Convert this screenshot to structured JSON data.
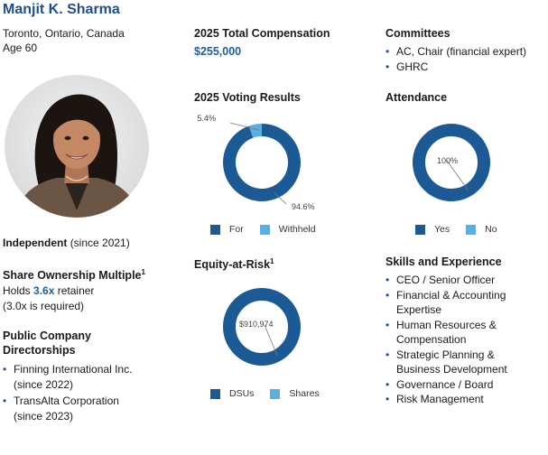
{
  "profile": {
    "name": "Manjit K. Sharma",
    "location": "Toronto, Ontario, Canada",
    "age": "Age 60",
    "independent_label": "Independent",
    "independent_since": "(since 2021)",
    "share_ownership_title": "Share Ownership Multiple",
    "share_ownership_sup": "1",
    "holds_prefix": "Holds",
    "holds_value": "3.6x",
    "holds_suffix": "retainer",
    "required": "(3.0x is required)",
    "directorships_title_1": "Public Company",
    "directorships_title_2": "Directorships",
    "directorships": [
      {
        "line1": "Finning International Inc.",
        "line2": "(since 2022)"
      },
      {
        "line1": "TransAlta Corporation",
        "line2": "(since 2023)"
      }
    ]
  },
  "compensation": {
    "title": "2025 Total Compensation",
    "value": "$255,000"
  },
  "colors": {
    "primary": "#1b5a94",
    "secondary": "#5aaee0",
    "name": "#1f4e8c"
  },
  "chart_data": [
    {
      "type": "pie",
      "title": "2025 Voting Results",
      "categories": [
        "For",
        "Withheld"
      ],
      "values": [
        94.6,
        5.4
      ],
      "labels": [
        "94.6%",
        "5.4%"
      ],
      "legend": "bottom"
    },
    {
      "type": "pie",
      "title": "Attendance",
      "categories": [
        "Yes",
        "No"
      ],
      "values": [
        100,
        0
      ],
      "labels": [
        "100%"
      ],
      "legend": "bottom"
    },
    {
      "type": "pie",
      "title": "Equity-at-Risk",
      "title_sup": "1",
      "categories": [
        "DSUs",
        "Shares"
      ],
      "values": [
        910974,
        0
      ],
      "labels": [
        "$910,974"
      ],
      "legend": "bottom"
    }
  ],
  "committees": {
    "title": "Committees",
    "items": [
      "AC, Chair (financial expert)",
      "GHRC"
    ]
  },
  "skills": {
    "title": "Skills and Experience",
    "items": [
      {
        "line1": "CEO / Senior Officer",
        "line2": ""
      },
      {
        "line1": "Financial & Accounting",
        "line2": "Expertise"
      },
      {
        "line1": "Human Resources &",
        "line2": "Compensation"
      },
      {
        "line1": "Strategic Planning &",
        "line2": "Business Development"
      },
      {
        "line1": "Governance / Board",
        "line2": ""
      },
      {
        "line1": "Risk Management",
        "line2": ""
      }
    ]
  },
  "icons": {
    "bullet": "•"
  }
}
